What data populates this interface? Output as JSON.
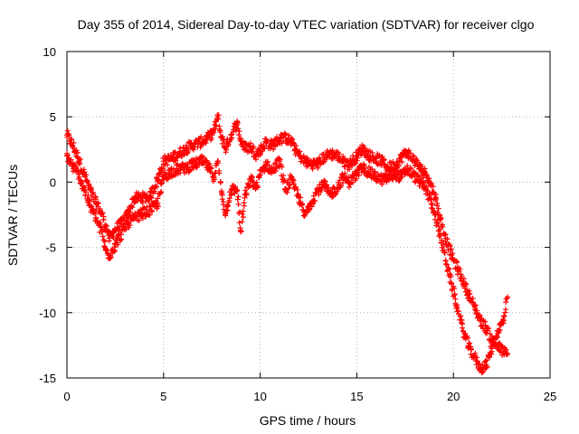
{
  "chart_data": {
    "type": "scatter",
    "title": "Day 355 of 2014, Sidereal Day-to-day VTEC variation (SDTVAR) for receiver clgo",
    "xlabel": "GPS time / hours",
    "ylabel": "SDTVAR / TECUs",
    "xlim": [
      0,
      25
    ],
    "ylim": [
      -15,
      10
    ],
    "xticks": [
      "0",
      "5",
      "10",
      "15",
      "20",
      "25"
    ],
    "yticks": [
      "10",
      "5",
      "0",
      "-5",
      "-10",
      "-15"
    ],
    "grid": true,
    "marker": "+",
    "series_color": "#ff0000",
    "series": [
      {
        "name": "SDTVAR",
        "track": "upper",
        "x": [
          0.0,
          0.3,
          0.6,
          0.9,
          1.2,
          1.5,
          1.8,
          2.0,
          2.2,
          2.5,
          2.8,
          3.1,
          3.5,
          3.9,
          4.3,
          4.7,
          5.0,
          5.4,
          5.8,
          6.2,
          6.6,
          7.0,
          7.3,
          7.6,
          7.8,
          8.0,
          8.2,
          8.5,
          8.8,
          9.0,
          9.2,
          9.5,
          9.8,
          10.0,
          10.3,
          10.6,
          11.0,
          11.3,
          11.6,
          12.0,
          12.3,
          12.6,
          13.0,
          13.3,
          13.6,
          14.0,
          14.3,
          14.6,
          15.0,
          15.3,
          15.6,
          16.0,
          16.3,
          16.6,
          17.0,
          17.3,
          17.6,
          18.0,
          18.3,
          18.6,
          19.0,
          19.3,
          19.6,
          19.9,
          20.2,
          20.5,
          20.8,
          21.1,
          21.4,
          21.7,
          22.0,
          22.3,
          22.6,
          22.8
        ],
        "y": [
          3.6,
          2.8,
          1.8,
          0.6,
          -0.6,
          -1.6,
          -2.4,
          -3.3,
          -4.3,
          -3.6,
          -3.2,
          -2.6,
          -1.2,
          -1.2,
          -1.1,
          0.2,
          1.6,
          1.8,
          2.2,
          2.6,
          2.9,
          3.1,
          3.4,
          3.9,
          5.0,
          3.4,
          2.6,
          3.6,
          4.6,
          3.2,
          2.6,
          2.7,
          2.1,
          2.4,
          3.1,
          2.8,
          3.3,
          3.4,
          3.1,
          2.1,
          1.6,
          1.4,
          1.4,
          1.9,
          2.2,
          2.0,
          1.6,
          1.3,
          2.0,
          2.6,
          2.1,
          1.8,
          1.6,
          1.1,
          1.3,
          1.9,
          2.3,
          1.6,
          1.0,
          0.6,
          -0.8,
          -2.6,
          -4.3,
          -5.6,
          -6.6,
          -7.6,
          -8.6,
          -9.6,
          -10.6,
          -11.2,
          -12.1,
          -12.6,
          -13.0,
          -13.2
        ]
      },
      {
        "name": "SDTVAR",
        "track": "lower",
        "x": [
          0.0,
          0.3,
          0.6,
          0.9,
          1.2,
          1.5,
          1.8,
          2.0,
          2.2,
          2.5,
          2.8,
          3.1,
          3.5,
          3.9,
          4.3,
          4.7,
          5.0,
          5.4,
          5.8,
          6.2,
          6.6,
          7.0,
          7.3,
          7.6,
          7.8,
          8.0,
          8.2,
          8.5,
          8.8,
          9.0,
          9.2,
          9.5,
          9.8,
          10.0,
          10.3,
          10.6,
          11.0,
          11.3,
          11.6,
          12.0,
          12.3,
          12.6,
          13.0,
          13.3,
          13.6,
          14.0,
          14.3,
          14.6,
          15.0,
          15.3,
          15.6,
          16.0,
          16.3,
          16.6,
          17.0,
          17.3,
          17.6,
          18.0,
          18.3,
          18.6,
          19.0,
          19.3,
          19.6,
          19.9,
          20.2,
          20.5,
          20.8,
          21.1,
          21.4,
          21.7,
          22.0,
          22.3,
          22.6,
          22.8
        ],
        "y": [
          2.0,
          1.2,
          0.6,
          -0.6,
          -1.8,
          -2.8,
          -3.8,
          -5.2,
          -5.6,
          -4.8,
          -4.0,
          -3.2,
          -2.8,
          -2.4,
          -2.2,
          -1.6,
          0.4,
          0.8,
          1.0,
          1.1,
          1.4,
          1.6,
          1.2,
          0.4,
          1.6,
          -0.8,
          -2.4,
          -0.6,
          -0.6,
          -3.8,
          -1.2,
          0.2,
          -0.4,
          0.6,
          1.4,
          0.8,
          1.6,
          -0.6,
          0.2,
          -1.2,
          -2.6,
          -1.6,
          -0.6,
          -0.2,
          -1.0,
          -0.4,
          0.4,
          0.0,
          0.6,
          1.1,
          0.8,
          0.4,
          0.2,
          0.3,
          0.6,
          0.4,
          1.0,
          0.4,
          0.0,
          -0.6,
          -2.2,
          -4.0,
          -6.0,
          -7.8,
          -9.6,
          -11.4,
          -12.6,
          -13.4,
          -14.3,
          -14.0,
          -12.6,
          -11.4,
          -10.6,
          -8.8
        ]
      }
    ]
  }
}
